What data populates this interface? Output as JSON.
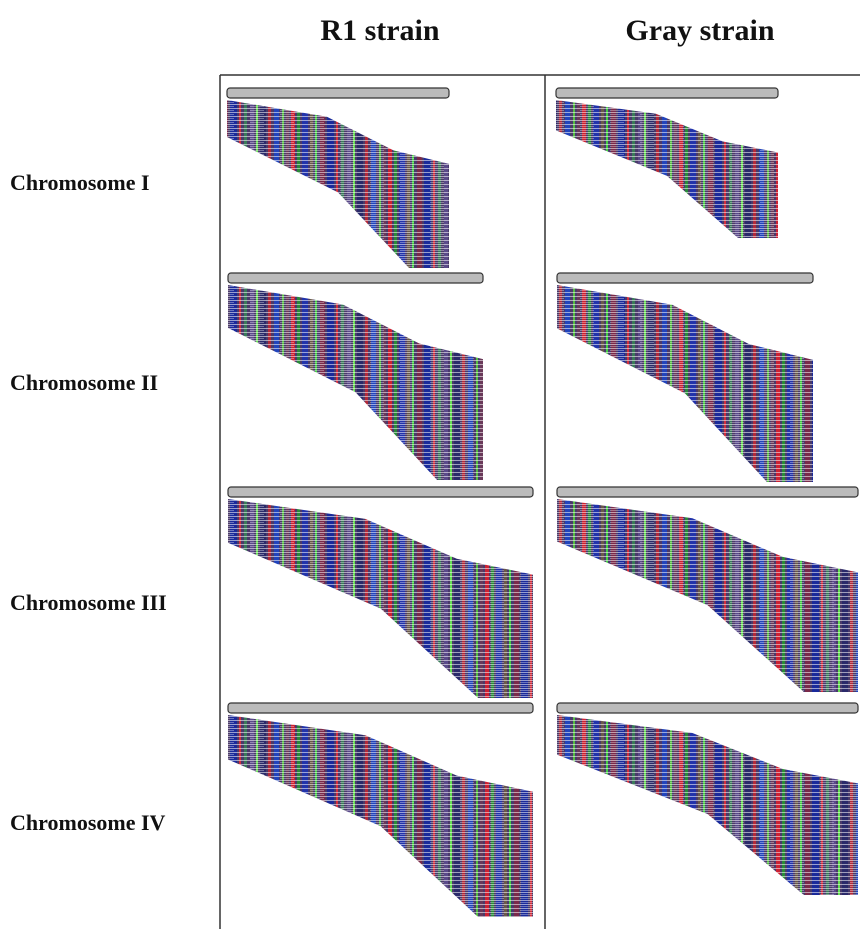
{
  "columns": [
    "R1 strain",
    "Gray strain"
  ],
  "rows": [
    "Chromosome I",
    "Chromosome II",
    "Chromosome III",
    "Chromosome IV"
  ]
}
